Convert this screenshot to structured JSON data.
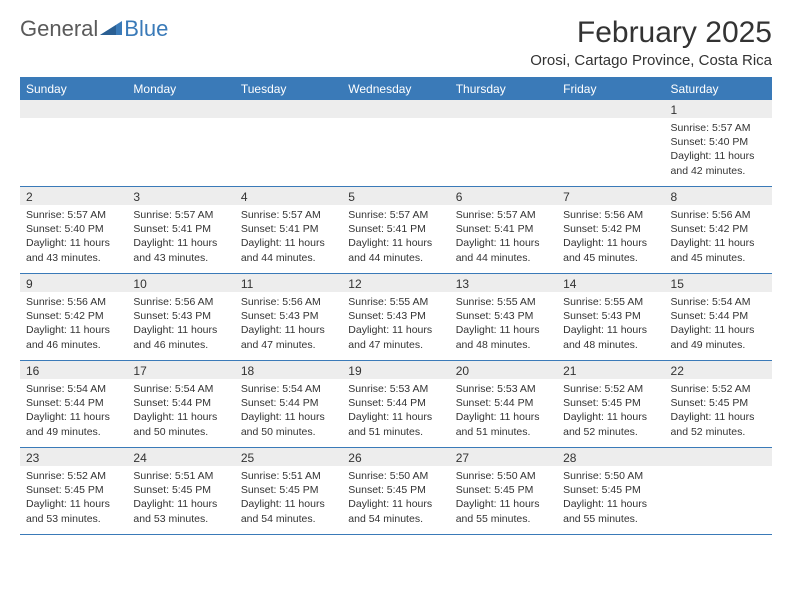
{
  "logo": {
    "text1": "General",
    "text2": "Blue"
  },
  "title": "February 2025",
  "subtitle": "Orosi, Cartago Province, Costa Rica",
  "colors": {
    "accent": "#3a7ab8",
    "header_text": "#ffffff",
    "daynum_bg": "#ededed",
    "body_text": "#333333",
    "logo_gray": "#5a5a5a"
  },
  "day_headers": [
    "Sunday",
    "Monday",
    "Tuesday",
    "Wednesday",
    "Thursday",
    "Friday",
    "Saturday"
  ],
  "weeks": [
    [
      {
        "n": "",
        "sunrise": "",
        "sunset": "",
        "daylight": ""
      },
      {
        "n": "",
        "sunrise": "",
        "sunset": "",
        "daylight": ""
      },
      {
        "n": "",
        "sunrise": "",
        "sunset": "",
        "daylight": ""
      },
      {
        "n": "",
        "sunrise": "",
        "sunset": "",
        "daylight": ""
      },
      {
        "n": "",
        "sunrise": "",
        "sunset": "",
        "daylight": ""
      },
      {
        "n": "",
        "sunrise": "",
        "sunset": "",
        "daylight": ""
      },
      {
        "n": "1",
        "sunrise": "Sunrise: 5:57 AM",
        "sunset": "Sunset: 5:40 PM",
        "daylight": "Daylight: 11 hours and 42 minutes."
      }
    ],
    [
      {
        "n": "2",
        "sunrise": "Sunrise: 5:57 AM",
        "sunset": "Sunset: 5:40 PM",
        "daylight": "Daylight: 11 hours and 43 minutes."
      },
      {
        "n": "3",
        "sunrise": "Sunrise: 5:57 AM",
        "sunset": "Sunset: 5:41 PM",
        "daylight": "Daylight: 11 hours and 43 minutes."
      },
      {
        "n": "4",
        "sunrise": "Sunrise: 5:57 AM",
        "sunset": "Sunset: 5:41 PM",
        "daylight": "Daylight: 11 hours and 44 minutes."
      },
      {
        "n": "5",
        "sunrise": "Sunrise: 5:57 AM",
        "sunset": "Sunset: 5:41 PM",
        "daylight": "Daylight: 11 hours and 44 minutes."
      },
      {
        "n": "6",
        "sunrise": "Sunrise: 5:57 AM",
        "sunset": "Sunset: 5:41 PM",
        "daylight": "Daylight: 11 hours and 44 minutes."
      },
      {
        "n": "7",
        "sunrise": "Sunrise: 5:56 AM",
        "sunset": "Sunset: 5:42 PM",
        "daylight": "Daylight: 11 hours and 45 minutes."
      },
      {
        "n": "8",
        "sunrise": "Sunrise: 5:56 AM",
        "sunset": "Sunset: 5:42 PM",
        "daylight": "Daylight: 11 hours and 45 minutes."
      }
    ],
    [
      {
        "n": "9",
        "sunrise": "Sunrise: 5:56 AM",
        "sunset": "Sunset: 5:42 PM",
        "daylight": "Daylight: 11 hours and 46 minutes."
      },
      {
        "n": "10",
        "sunrise": "Sunrise: 5:56 AM",
        "sunset": "Sunset: 5:43 PM",
        "daylight": "Daylight: 11 hours and 46 minutes."
      },
      {
        "n": "11",
        "sunrise": "Sunrise: 5:56 AM",
        "sunset": "Sunset: 5:43 PM",
        "daylight": "Daylight: 11 hours and 47 minutes."
      },
      {
        "n": "12",
        "sunrise": "Sunrise: 5:55 AM",
        "sunset": "Sunset: 5:43 PM",
        "daylight": "Daylight: 11 hours and 47 minutes."
      },
      {
        "n": "13",
        "sunrise": "Sunrise: 5:55 AM",
        "sunset": "Sunset: 5:43 PM",
        "daylight": "Daylight: 11 hours and 48 minutes."
      },
      {
        "n": "14",
        "sunrise": "Sunrise: 5:55 AM",
        "sunset": "Sunset: 5:43 PM",
        "daylight": "Daylight: 11 hours and 48 minutes."
      },
      {
        "n": "15",
        "sunrise": "Sunrise: 5:54 AM",
        "sunset": "Sunset: 5:44 PM",
        "daylight": "Daylight: 11 hours and 49 minutes."
      }
    ],
    [
      {
        "n": "16",
        "sunrise": "Sunrise: 5:54 AM",
        "sunset": "Sunset: 5:44 PM",
        "daylight": "Daylight: 11 hours and 49 minutes."
      },
      {
        "n": "17",
        "sunrise": "Sunrise: 5:54 AM",
        "sunset": "Sunset: 5:44 PM",
        "daylight": "Daylight: 11 hours and 50 minutes."
      },
      {
        "n": "18",
        "sunrise": "Sunrise: 5:54 AM",
        "sunset": "Sunset: 5:44 PM",
        "daylight": "Daylight: 11 hours and 50 minutes."
      },
      {
        "n": "19",
        "sunrise": "Sunrise: 5:53 AM",
        "sunset": "Sunset: 5:44 PM",
        "daylight": "Daylight: 11 hours and 51 minutes."
      },
      {
        "n": "20",
        "sunrise": "Sunrise: 5:53 AM",
        "sunset": "Sunset: 5:44 PM",
        "daylight": "Daylight: 11 hours and 51 minutes."
      },
      {
        "n": "21",
        "sunrise": "Sunrise: 5:52 AM",
        "sunset": "Sunset: 5:45 PM",
        "daylight": "Daylight: 11 hours and 52 minutes."
      },
      {
        "n": "22",
        "sunrise": "Sunrise: 5:52 AM",
        "sunset": "Sunset: 5:45 PM",
        "daylight": "Daylight: 11 hours and 52 minutes."
      }
    ],
    [
      {
        "n": "23",
        "sunrise": "Sunrise: 5:52 AM",
        "sunset": "Sunset: 5:45 PM",
        "daylight": "Daylight: 11 hours and 53 minutes."
      },
      {
        "n": "24",
        "sunrise": "Sunrise: 5:51 AM",
        "sunset": "Sunset: 5:45 PM",
        "daylight": "Daylight: 11 hours and 53 minutes."
      },
      {
        "n": "25",
        "sunrise": "Sunrise: 5:51 AM",
        "sunset": "Sunset: 5:45 PM",
        "daylight": "Daylight: 11 hours and 54 minutes."
      },
      {
        "n": "26",
        "sunrise": "Sunrise: 5:50 AM",
        "sunset": "Sunset: 5:45 PM",
        "daylight": "Daylight: 11 hours and 54 minutes."
      },
      {
        "n": "27",
        "sunrise": "Sunrise: 5:50 AM",
        "sunset": "Sunset: 5:45 PM",
        "daylight": "Daylight: 11 hours and 55 minutes."
      },
      {
        "n": "28",
        "sunrise": "Sunrise: 5:50 AM",
        "sunset": "Sunset: 5:45 PM",
        "daylight": "Daylight: 11 hours and 55 minutes."
      },
      {
        "n": "",
        "sunrise": "",
        "sunset": "",
        "daylight": ""
      }
    ]
  ]
}
